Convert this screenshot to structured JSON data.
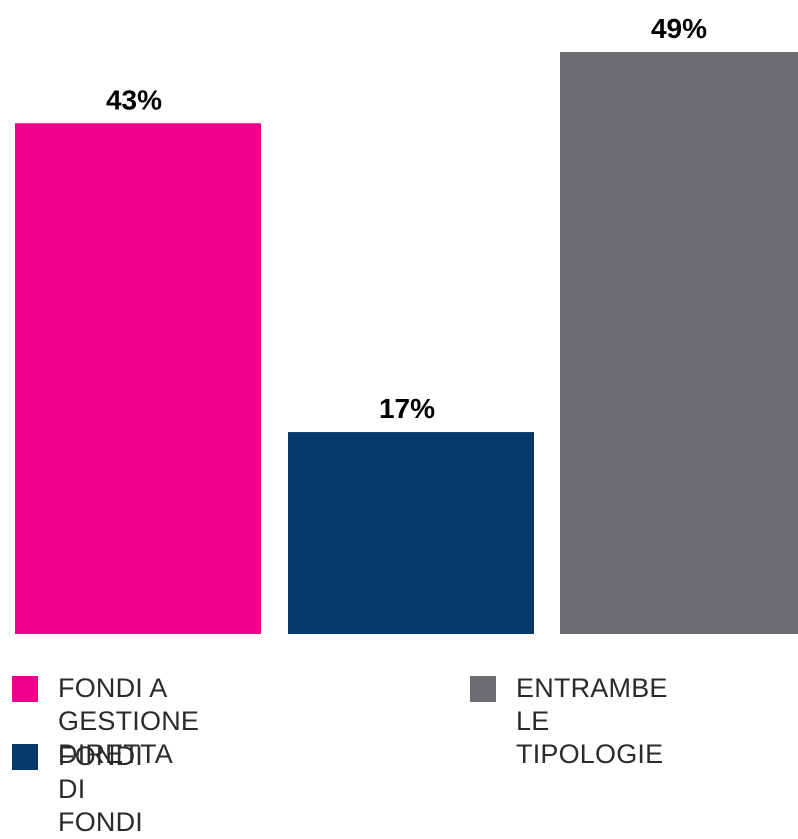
{
  "chart_data": {
    "type": "bar",
    "categories": [
      "FONDI A GESTIONE\nDIRETTA",
      "FONDI DI FONDI",
      "ENTRAMBE\nLE TIPOLOGIE"
    ],
    "values": [
      43,
      17,
      49
    ],
    "data_labels": [
      "43%",
      "17%",
      "49%"
    ],
    "colors": [
      "#EC008C",
      "#053A68",
      "#6D6E71"
    ],
    "ylim": [
      0,
      49
    ],
    "grid": false,
    "legend": "bottom"
  }
}
